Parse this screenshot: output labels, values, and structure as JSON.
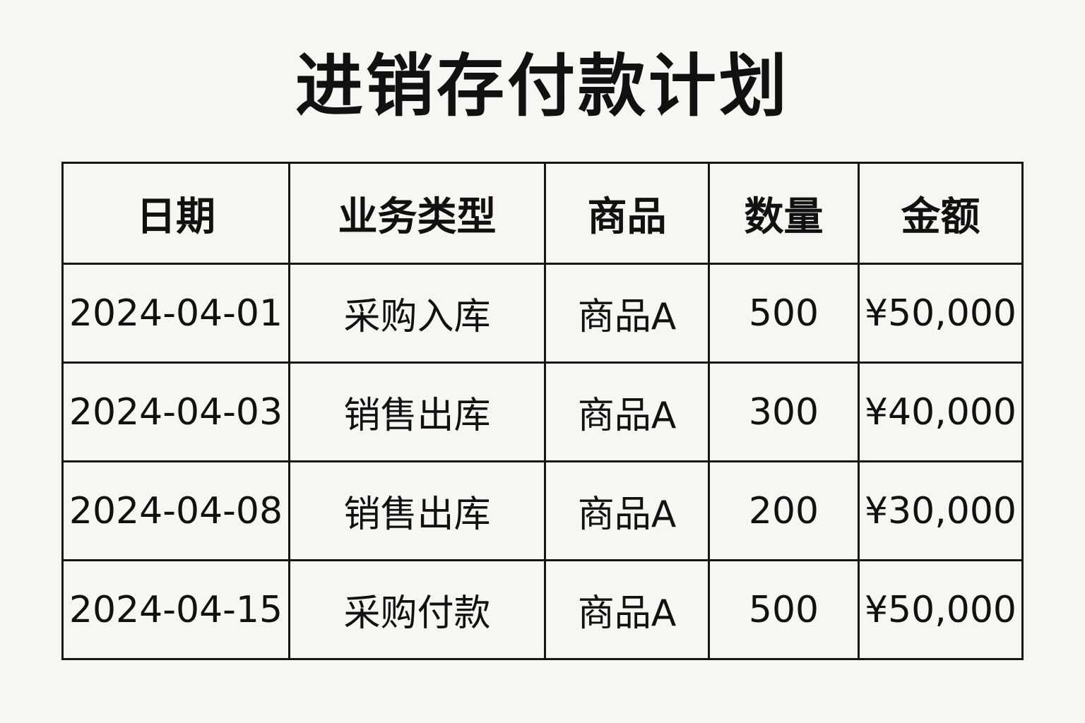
{
  "title": "进销存付款计划",
  "table": {
    "headers": [
      "日期",
      "业务类型",
      "商品",
      "数量",
      "金额"
    ],
    "rows": [
      [
        "2024-04-01",
        "采购入库",
        "商品A",
        "500",
        "¥50,000"
      ],
      [
        "2024-04-03",
        "销售出库",
        "商品A",
        "300",
        "¥40,000"
      ],
      [
        "2024-04-08",
        "销售出库",
        "商品A",
        "200",
        "¥30,000"
      ],
      [
        "2024-04-15",
        "采购付款",
        "商品A",
        "500",
        "¥50,000"
      ]
    ]
  }
}
